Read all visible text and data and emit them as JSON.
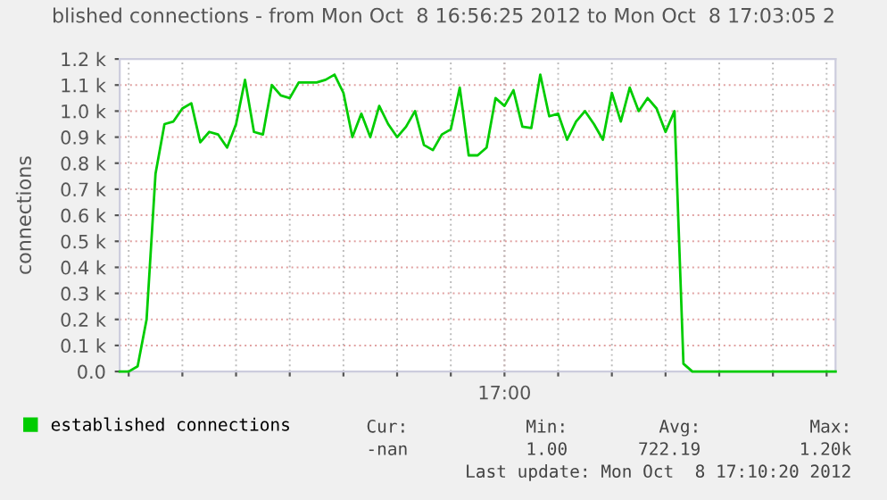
{
  "chart_data": {
    "type": "line",
    "title": "blished connections - from Mon Oct  8 16:56:25 2012 to Mon Oct  8 17:03:05 2",
    "ylabel": "connections",
    "categories": [
      null,
      null,
      null,
      null,
      null,
      null,
      null,
      null,
      null,
      null,
      null,
      null,
      null,
      null,
      null,
      null,
      null,
      null,
      null,
      null,
      null,
      null,
      null,
      null,
      null,
      null,
      null,
      null,
      null,
      null,
      null,
      null,
      null,
      null,
      null,
      null,
      null,
      null,
      null,
      null,
      null,
      null,
      null,
      "17:00",
      null,
      null,
      null,
      null,
      null,
      null,
      null,
      null,
      null,
      null,
      null,
      null,
      null,
      null,
      null,
      null,
      null,
      null,
      null,
      null,
      null,
      null,
      null,
      null,
      null,
      null,
      null,
      null,
      null,
      null,
      null,
      null,
      null,
      null,
      null,
      null,
      null
    ],
    "series": [
      {
        "name": "established connections",
        "color": "#00cc00",
        "values": [
          0,
          0,
          20,
          200,
          760,
          950,
          960,
          1010,
          1030,
          880,
          920,
          910,
          860,
          950,
          1120,
          920,
          910,
          1100,
          1060,
          1050,
          1110,
          1110,
          1110,
          1120,
          1140,
          1070,
          900,
          990,
          900,
          1020,
          950,
          900,
          940,
          1000,
          870,
          850,
          910,
          930,
          1090,
          830,
          830,
          860,
          1050,
          1020,
          1080,
          940,
          935,
          1140,
          980,
          990,
          890,
          960,
          1000,
          950,
          890,
          1070,
          960,
          1090,
          1000,
          1050,
          1010,
          920,
          1000,
          30,
          0,
          0,
          0,
          0,
          0,
          0,
          0,
          0,
          0,
          0,
          0,
          0,
          0,
          0,
          0,
          0,
          0
        ]
      }
    ],
    "ylim": [
      0,
      1200
    ],
    "yticks": [
      {
        "value": 0,
        "label": "0.0"
      },
      {
        "value": 100,
        "label": "0.1 k"
      },
      {
        "value": 200,
        "label": "0.2 k"
      },
      {
        "value": 300,
        "label": "0.3 k"
      },
      {
        "value": 400,
        "label": "0.4 k"
      },
      {
        "value": 500,
        "label": "0.5 k"
      },
      {
        "value": 600,
        "label": "0.6 k"
      },
      {
        "value": 700,
        "label": "0.7 k"
      },
      {
        "value": 800,
        "label": "0.8 k"
      },
      {
        "value": 900,
        "label": "0.9 k"
      },
      {
        "value": 1000,
        "label": "1.0 k"
      },
      {
        "value": 1100,
        "label": "1.1 k"
      },
      {
        "value": 1200,
        "label": "1.2 k"
      }
    ],
    "grid": true,
    "legend": "bottom left",
    "line_style": "solid",
    "annotations": [
      "Cur:",
      "Min:",
      "Avg:",
      "Max:",
      "-nan",
      "1.00",
      "722.19",
      "1.20k",
      "Last update: Mon Oct  8 17:10:20 2012"
    ]
  }
}
